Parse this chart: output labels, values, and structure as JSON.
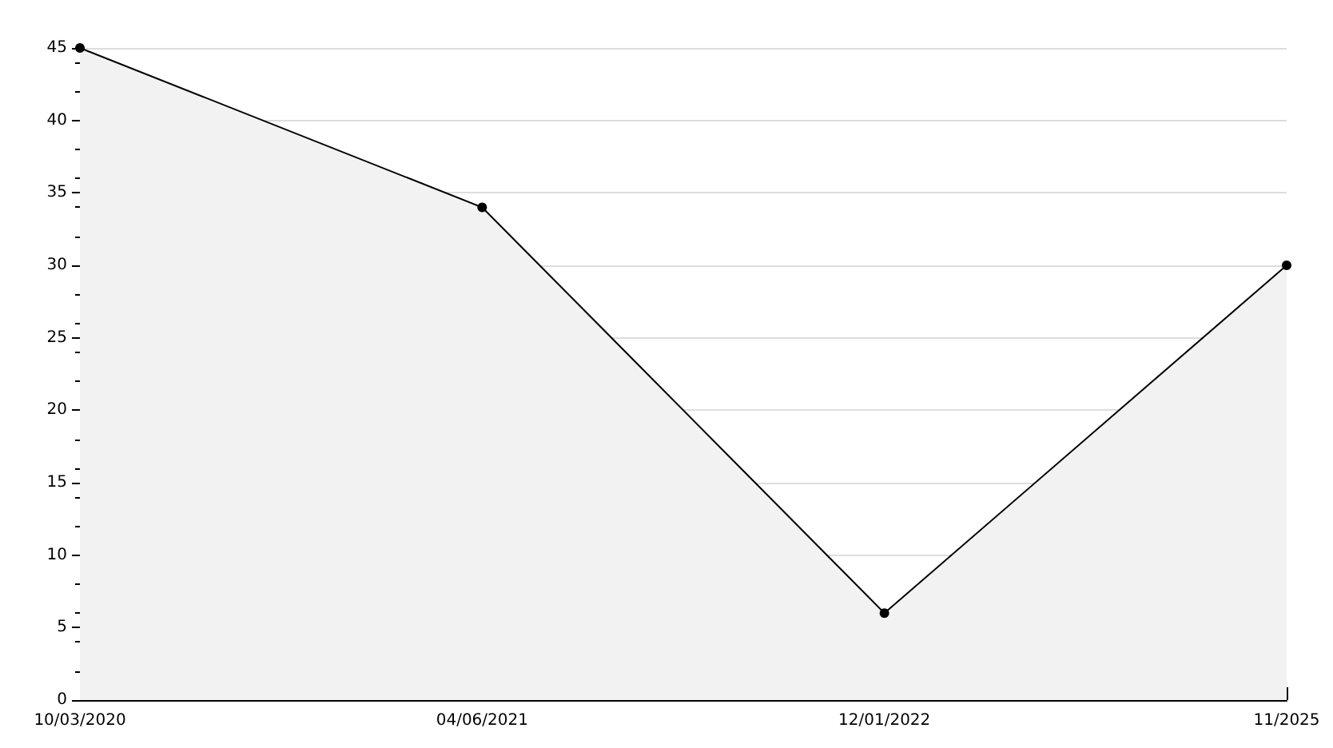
{
  "chart_data": {
    "type": "area",
    "categories": [
      "10/03/2020",
      "04/06/2021",
      "12/01/2022",
      "11/2025"
    ],
    "series": [
      {
        "color": "#000000",
        "values": [
          45,
          34,
          6,
          30
        ]
      }
    ],
    "ylim": [
      0,
      45
    ],
    "yticks": [
      0,
      5,
      10,
      15,
      20,
      25,
      30,
      35,
      40,
      45
    ],
    "grid": "y",
    "marker": "circle",
    "line_style": "solid"
  }
}
